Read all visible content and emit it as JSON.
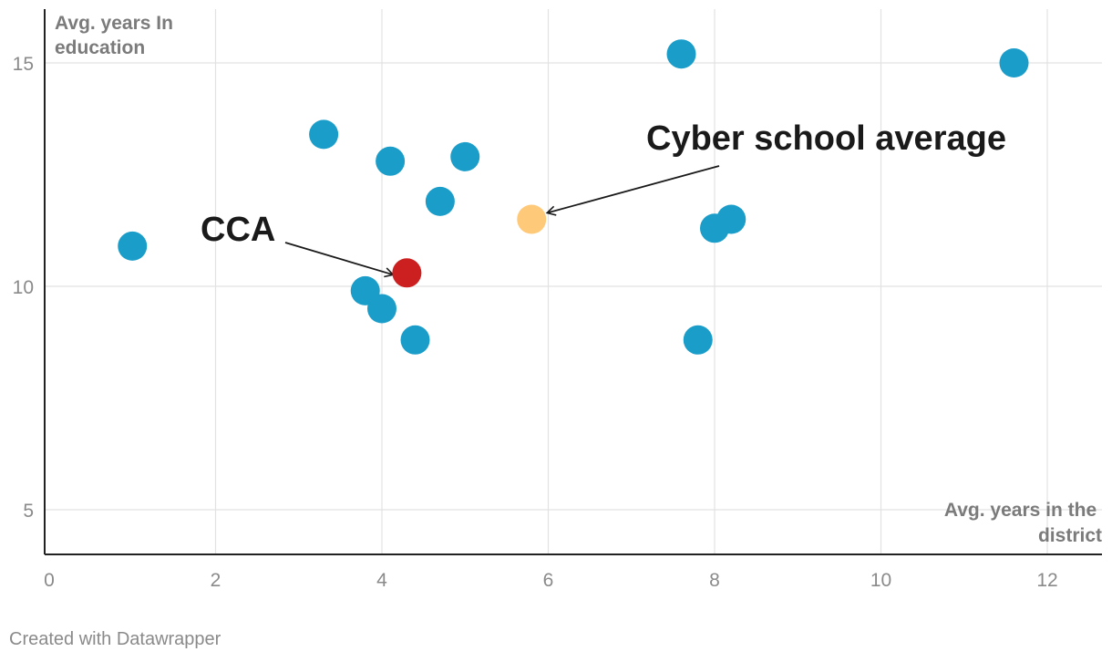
{
  "chart_data": {
    "type": "scatter",
    "xlabel": "Avg. years in the district",
    "ylabel": "Avg. years In education",
    "xlim": [
      0,
      12.6
    ],
    "ylim": [
      4,
      16.2
    ],
    "x_ticks": [
      0,
      2,
      4,
      6,
      8,
      10,
      12
    ],
    "y_ticks": [
      5,
      10,
      15
    ],
    "grid": true,
    "colors": {
      "default": "#1a9dc9",
      "cca": "#cc1f1f",
      "average": "#ffc97a"
    },
    "points": [
      {
        "x": 1.0,
        "y": 10.9,
        "group": "school"
      },
      {
        "x": 3.3,
        "y": 13.4,
        "group": "school"
      },
      {
        "x": 4.1,
        "y": 12.8,
        "group": "school"
      },
      {
        "x": 5.0,
        "y": 12.9,
        "group": "school"
      },
      {
        "x": 4.7,
        "y": 11.9,
        "group": "school"
      },
      {
        "x": 3.8,
        "y": 9.9,
        "group": "school"
      },
      {
        "x": 4.0,
        "y": 9.5,
        "group": "school"
      },
      {
        "x": 4.4,
        "y": 8.8,
        "group": "school"
      },
      {
        "x": 7.6,
        "y": 15.2,
        "group": "school"
      },
      {
        "x": 11.6,
        "y": 15.0,
        "group": "school"
      },
      {
        "x": 8.0,
        "y": 11.3,
        "group": "school"
      },
      {
        "x": 8.2,
        "y": 11.5,
        "group": "school"
      },
      {
        "x": 7.8,
        "y": 8.8,
        "group": "school"
      },
      {
        "x": 4.3,
        "y": 10.3,
        "group": "cca"
      },
      {
        "x": 5.8,
        "y": 11.5,
        "group": "average"
      }
    ],
    "annotations": [
      {
        "text": "CCA",
        "target_x": 4.3,
        "target_y": 10.3
      },
      {
        "text": "Cyber school average",
        "target_x": 5.8,
        "target_y": 11.5
      }
    ]
  },
  "footer": {
    "credit": "Created with Datawrapper"
  }
}
